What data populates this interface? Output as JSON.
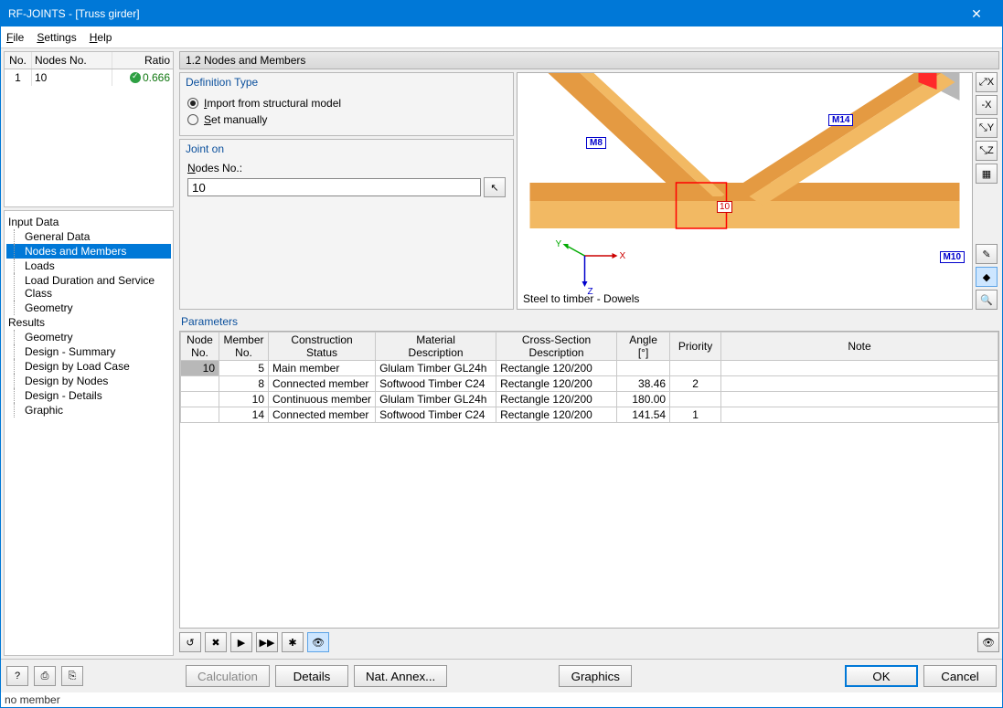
{
  "window": {
    "title": "RF-JOINTS - [Truss girder]"
  },
  "menu": {
    "file": "File",
    "settings": "Settings",
    "help": "Help"
  },
  "miniTable": {
    "headers": {
      "no": "No.",
      "nodes": "Nodes No.",
      "ratio": "Ratio"
    },
    "row": {
      "no": "1",
      "nodes": "10",
      "ratio": "0.666"
    }
  },
  "tree": {
    "input": "Input Data",
    "inputItems": [
      "General Data",
      "Nodes and Members",
      "Loads",
      "Load Duration and Service Class",
      "Geometry"
    ],
    "selectedInput": 1,
    "results": "Results",
    "resultItems": [
      "Geometry",
      "Design - Summary",
      "Design by Load Case",
      "Design by Nodes",
      "Design - Details",
      "Graphic"
    ]
  },
  "panel": {
    "title": "1.2 Nodes and Members"
  },
  "definition": {
    "title": "Definition Type",
    "opt1": "Import from structural model",
    "opt2": "Set manually",
    "selected": 0
  },
  "jointOn": {
    "title": "Joint on",
    "label": "Nodes No.:",
    "value": "10"
  },
  "viewport": {
    "caption": "Steel to timber - Dowels",
    "labels": {
      "m8": "M8",
      "m14": "M14",
      "m10": "M10",
      "node": "10"
    },
    "colors": {
      "beam1": "#e49a42",
      "beam1_light": "#f2b963",
      "beam2": "#f2b963",
      "gray": "#b8b8b8",
      "red": "#ff2a2a"
    },
    "axes": {
      "x": "X",
      "y": "Y",
      "z": "Z"
    }
  },
  "sideTools": [
    "⤢X",
    "-X",
    "⤡Y",
    "⤡Z",
    "▦",
    "✎",
    "◆",
    "🔍"
  ],
  "parameters": {
    "title": "Parameters",
    "columns": [
      "Node\nNo.",
      "Member\nNo.",
      "Construction\nStatus",
      "Material\nDescription",
      "Cross-Section\nDescription",
      "Angle\n[°]",
      "Priority",
      "Note"
    ],
    "rows": [
      {
        "node": "10",
        "member": "5",
        "status": "Main member",
        "material": "Glulam Timber GL24h",
        "cs": "Rectangle 120/200",
        "angle": "",
        "priority": ""
      },
      {
        "node": "",
        "member": "8",
        "status": "Connected member",
        "material": "Softwood Timber C24",
        "cs": "Rectangle 120/200",
        "angle": "38.46",
        "priority": "2"
      },
      {
        "node": "",
        "member": "10",
        "status": "Continuous member",
        "material": "Glulam Timber GL24h",
        "cs": "Rectangle 120/200",
        "angle": "180.00",
        "priority": ""
      },
      {
        "node": "",
        "member": "14",
        "status": "Connected member",
        "material": "Softwood Timber C24",
        "cs": "Rectangle 120/200",
        "angle": "141.54",
        "priority": "1"
      }
    ]
  },
  "paramToolbar": [
    "↺",
    "✖",
    "▶",
    "▶▶",
    "✱",
    "👁"
  ],
  "footer": {
    "calc": "Calculation",
    "details": "Details",
    "annex": "Nat. Annex...",
    "graphics": "Graphics",
    "ok": "OK",
    "cancel": "Cancel"
  },
  "status": "no member"
}
